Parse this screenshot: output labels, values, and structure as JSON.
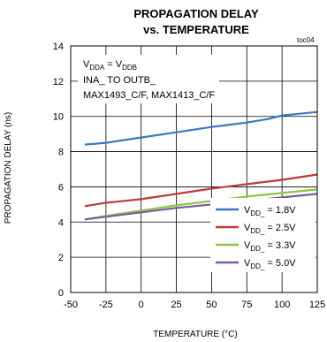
{
  "chart_data": {
    "type": "line",
    "title_line1": "PROPAGATION DELAY",
    "title_line2": "vs. TEMPERATURE",
    "tag": "toc04",
    "xlabel": "TEMPERATURE (°C)",
    "ylabel": "PROPAGATION DELAY (ns)",
    "xlim": [
      -50,
      125
    ],
    "ylim": [
      0,
      14
    ],
    "xticks": [
      "-50",
      "-25",
      "0",
      "25",
      "50",
      "75",
      "100",
      "125"
    ],
    "yticks": [
      "0",
      "2",
      "4",
      "6",
      "8",
      "10",
      "12",
      "14"
    ],
    "grid": true,
    "legend_position": "bottom-right",
    "annotation": {
      "line1_main": "V",
      "line1_sub1": "DDA",
      "line1_mid": " = V",
      "line1_sub2": "DDB",
      "line2": "INA_ TO OUTB_",
      "line3": "MAX1493_C/F, MAX1413_C/F"
    },
    "series": [
      {
        "name": "VDD_ = 1.8V",
        "sub_pre": "V",
        "sub": "DD_",
        "sub_post": " = 1.8V",
        "color": "#3a78bd",
        "x": [
          -40,
          -25,
          0,
          25,
          50,
          75,
          90,
          100,
          125
        ],
        "y": [
          8.4,
          8.5,
          8.8,
          9.1,
          9.4,
          9.65,
          9.85,
          10.05,
          10.25
        ]
      },
      {
        "name": "VDD_ = 2.5V",
        "sub_pre": "V",
        "sub": "DD_",
        "sub_post": " = 2.5V",
        "color": "#c0393b",
        "x": [
          -40,
          -25,
          0,
          25,
          50,
          75,
          100,
          125
        ],
        "y": [
          4.9,
          5.1,
          5.3,
          5.6,
          5.9,
          6.15,
          6.4,
          6.7
        ]
      },
      {
        "name": "VDD_ = 3.3V",
        "sub_pre": "V",
        "sub": "DD_",
        "sub_post": " = 3.3V",
        "color": "#8dc63f",
        "x": [
          -40,
          -25,
          0,
          25,
          50,
          75,
          100,
          125
        ],
        "y": [
          4.15,
          4.35,
          4.65,
          4.95,
          5.2,
          5.45,
          5.65,
          5.85
        ]
      },
      {
        "name": "VDD_ = 5.0V",
        "sub_pre": "V",
        "sub": "DD_",
        "sub_post": " = 5.0V",
        "color": "#7b5aa6",
        "x": [
          -40,
          -25,
          0,
          25,
          50,
          75,
          100,
          125
        ],
        "y": [
          4.15,
          4.3,
          4.55,
          4.8,
          5.0,
          5.2,
          5.4,
          5.6
        ]
      }
    ]
  }
}
